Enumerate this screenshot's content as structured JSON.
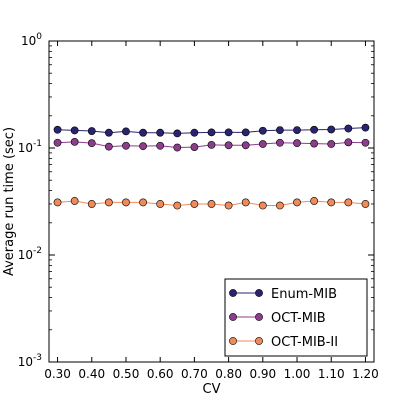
{
  "chart_data": {
    "type": "line",
    "xlabel": "CV",
    "ylabel": "Average run time (sec)",
    "yscale": "log",
    "xlim": [
      0.275,
      1.225
    ],
    "ylim": [
      0.001,
      1
    ],
    "x_ticks": [
      "0.30",
      "0.40",
      "0.50",
      "0.60",
      "0.70",
      "0.80",
      "0.90",
      "1.00",
      "1.10",
      "1.20"
    ],
    "y_ticks": [
      {
        "value": 1,
        "base": "10",
        "exp": "0"
      },
      {
        "value": 0.1,
        "base": "10",
        "exp": "-1"
      },
      {
        "value": 0.01,
        "base": "10",
        "exp": "-2"
      },
      {
        "value": 0.001,
        "base": "10",
        "exp": "-3"
      }
    ],
    "legend_position": "bottom-right",
    "x": [
      0.3,
      0.35,
      0.4,
      0.45,
      0.5,
      0.55,
      0.6,
      0.65,
      0.7,
      0.75,
      0.8,
      0.85,
      0.9,
      0.95,
      1.0,
      1.05,
      1.1,
      1.15,
      1.2
    ],
    "series": [
      {
        "name": "Enum-MIB",
        "color": "#2a2470",
        "values": [
          0.148,
          0.146,
          0.144,
          0.139,
          0.143,
          0.139,
          0.139,
          0.137,
          0.139,
          0.14,
          0.14,
          0.14,
          0.145,
          0.147,
          0.147,
          0.148,
          0.149,
          0.152,
          0.155
        ]
      },
      {
        "name": "OCT-MIB",
        "color": "#8c3d8c",
        "values": [
          0.112,
          0.114,
          0.111,
          0.103,
          0.105,
          0.104,
          0.105,
          0.101,
          0.102,
          0.107,
          0.106,
          0.106,
          0.109,
          0.112,
          0.111,
          0.11,
          0.109,
          0.113,
          0.112
        ]
      },
      {
        "name": "OCT-MIB-II",
        "color": "#f08a5a",
        "values": [
          0.031,
          0.032,
          0.03,
          0.031,
          0.031,
          0.031,
          0.03,
          0.029,
          0.03,
          0.03,
          0.029,
          0.031,
          0.029,
          0.029,
          0.031,
          0.032,
          0.031,
          0.031,
          0.03
        ]
      }
    ]
  }
}
